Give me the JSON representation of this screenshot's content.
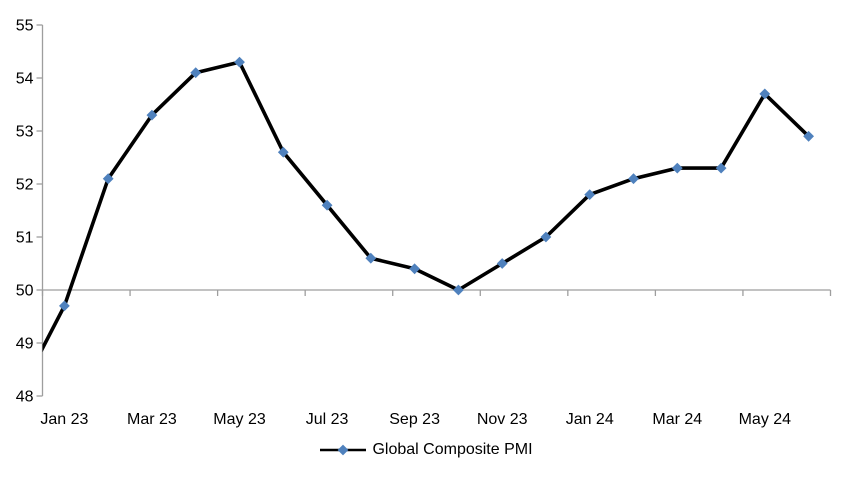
{
  "chart_data": {
    "type": "line",
    "title": "",
    "xlabel": "",
    "ylabel": "",
    "categories": [
      "Dec 22",
      "Jan 23",
      "Feb 23",
      "Mar 23",
      "Apr 23",
      "May 23",
      "Jun 23",
      "Jul 23",
      "Aug 23",
      "Sep 23",
      "Oct 23",
      "Nov 23",
      "Dec 23",
      "Jan 24",
      "Feb 24",
      "Mar 24",
      "Apr 24",
      "May 24",
      "Jun 24"
    ],
    "series": [
      {
        "name": "Global Composite PMI",
        "values": [
          48.1,
          49.7,
          52.1,
          53.3,
          54.1,
          54.3,
          52.6,
          51.6,
          50.6,
          50.4,
          50.0,
          50.5,
          51.0,
          51.8,
          52.1,
          52.3,
          52.3,
          53.7,
          52.9
        ]
      }
    ],
    "first_category_clipped_at_axis": true,
    "ylim": [
      48,
      55
    ],
    "y_ticks": [
      55,
      54,
      53,
      52,
      51,
      50,
      49,
      48
    ],
    "x_tick_labels": [
      "Jan 23",
      "Mar 23",
      "May 23",
      "Jul 23",
      "Sep 23",
      "Nov 23",
      "Jan 24",
      "Mar 24",
      "May 24"
    ],
    "x_tick_label_category_indexes": [
      1,
      3,
      5,
      7,
      9,
      11,
      13,
      15,
      17
    ],
    "axis_cross_value": 50,
    "grid": false,
    "legend": {
      "position": "bottom",
      "label": "Global Composite PMI"
    }
  },
  "style": {
    "line_color": "#000000",
    "marker_color": "#4F81BD",
    "axis_color": "#9E9E9E",
    "text_color": "#000000",
    "background": "#FFFFFF"
  }
}
